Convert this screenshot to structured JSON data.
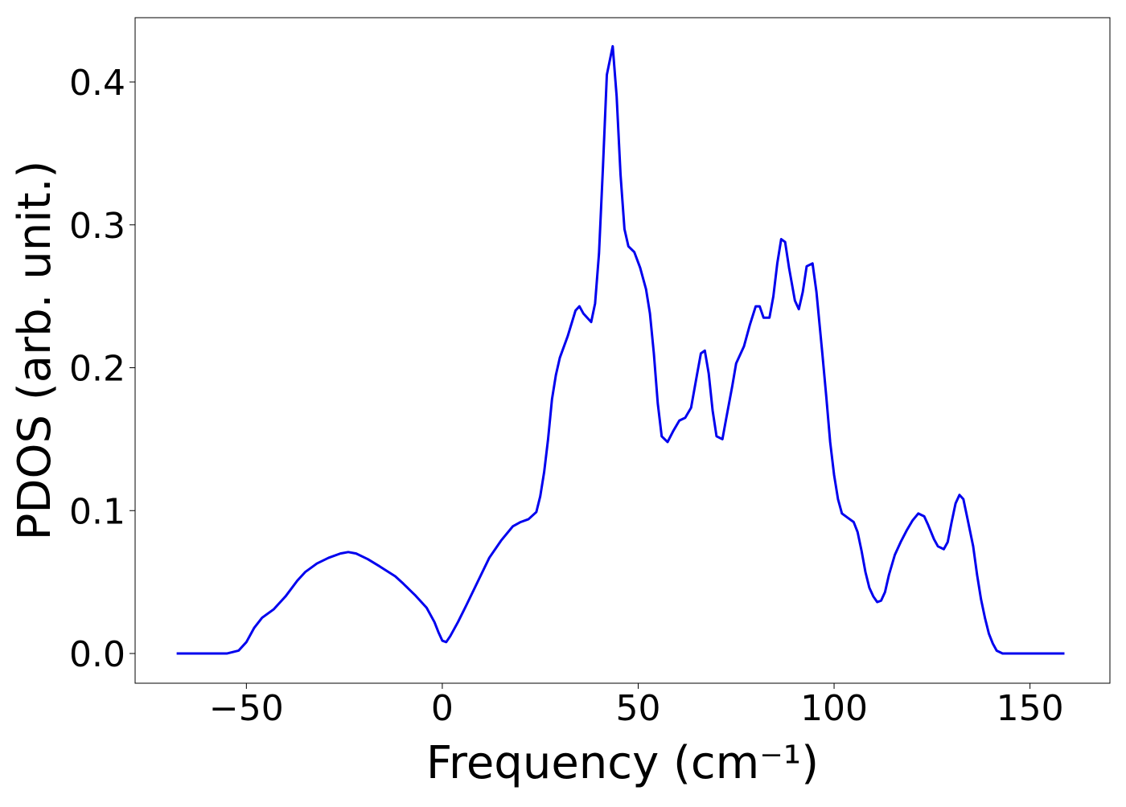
{
  "chart_data": {
    "type": "line",
    "xlabel": "Frequency (cm⁻¹)",
    "ylabel": "PDOS (arb. unit.)",
    "xlim": [
      -78.4,
      170.4
    ],
    "ylim": [
      -0.0208,
      0.445
    ],
    "xticks": [
      {
        "value": -50,
        "label": "−50"
      },
      0,
      50,
      100,
      150
    ],
    "yticks": [
      {
        "value": 0,
        "label": "0.0"
      },
      0.1,
      0.2,
      0.3,
      0.4
    ],
    "grid": false,
    "x": [
      -67.8,
      -55,
      -52,
      -50,
      -48,
      -46,
      -43,
      -40,
      -37,
      -35,
      -32,
      -29,
      -26,
      -24,
      -22,
      -19,
      -16,
      -12,
      -10,
      -7,
      -4,
      -2,
      -1,
      0,
      1,
      2,
      4,
      6,
      9,
      12,
      15,
      18,
      20,
      22,
      24,
      25,
      26,
      27,
      28,
      29,
      30,
      32,
      34,
      35,
      36,
      38,
      39,
      40,
      41,
      42,
      43.5,
      44.5,
      45.5,
      46.5,
      47.5,
      49,
      50.5,
      52,
      53,
      54,
      55,
      56,
      57.5,
      59,
      60.5,
      62,
      63.5,
      65,
      66,
      67,
      68,
      69,
      70,
      71.5,
      72.5,
      74,
      75,
      77,
      78.5,
      80,
      81,
      82,
      83.5,
      84.5,
      85.5,
      86.5,
      87.5,
      88.5,
      90,
      91,
      92,
      93,
      94.5,
      95.5,
      97,
      98,
      99,
      100,
      101,
      102,
      103.5,
      105,
      106,
      107,
      108,
      109,
      110,
      111,
      112,
      113,
      114,
      115.5,
      117,
      118.5,
      120,
      121.5,
      123,
      124,
      125.5,
      126.5,
      128,
      129,
      130,
      131,
      132,
      133,
      134,
      135.5,
      136.5,
      137.5,
      138.5,
      139.5,
      140.5,
      141.5,
      143,
      150,
      158.8
    ],
    "series": [
      {
        "name": "PDOS",
        "color": "#0000ee",
        "values": [
          0,
          0,
          0.002,
          0.008,
          0.018,
          0.025,
          0.031,
          0.04,
          0.051,
          0.057,
          0.063,
          0.067,
          0.07,
          0.071,
          0.07,
          0.066,
          0.061,
          0.054,
          0.049,
          0.041,
          0.032,
          0.022,
          0.015,
          0.009,
          0.008,
          0.012,
          0.022,
          0.033,
          0.05,
          0.067,
          0.079,
          0.089,
          0.092,
          0.094,
          0.099,
          0.11,
          0.127,
          0.15,
          0.178,
          0.195,
          0.207,
          0.222,
          0.24,
          0.243,
          0.238,
          0.232,
          0.245,
          0.28,
          0.34,
          0.405,
          0.425,
          0.39,
          0.335,
          0.297,
          0.285,
          0.281,
          0.27,
          0.255,
          0.238,
          0.21,
          0.175,
          0.152,
          0.148,
          0.156,
          0.163,
          0.165,
          0.172,
          0.195,
          0.21,
          0.212,
          0.196,
          0.17,
          0.152,
          0.15,
          0.165,
          0.187,
          0.203,
          0.215,
          0.23,
          0.243,
          0.243,
          0.235,
          0.235,
          0.25,
          0.273,
          0.29,
          0.288,
          0.27,
          0.247,
          0.241,
          0.253,
          0.271,
          0.273,
          0.253,
          0.21,
          0.18,
          0.148,
          0.125,
          0.108,
          0.098,
          0.095,
          0.092,
          0.085,
          0.072,
          0.057,
          0.046,
          0.04,
          0.036,
          0.037,
          0.043,
          0.055,
          0.069,
          0.078,
          0.086,
          0.093,
          0.098,
          0.096,
          0.09,
          0.08,
          0.075,
          0.073,
          0.078,
          0.092,
          0.105,
          0.111,
          0.108,
          0.095,
          0.075,
          0.055,
          0.038,
          0.025,
          0.014,
          0.007,
          0.002,
          0,
          0,
          0
        ]
      }
    ]
  }
}
